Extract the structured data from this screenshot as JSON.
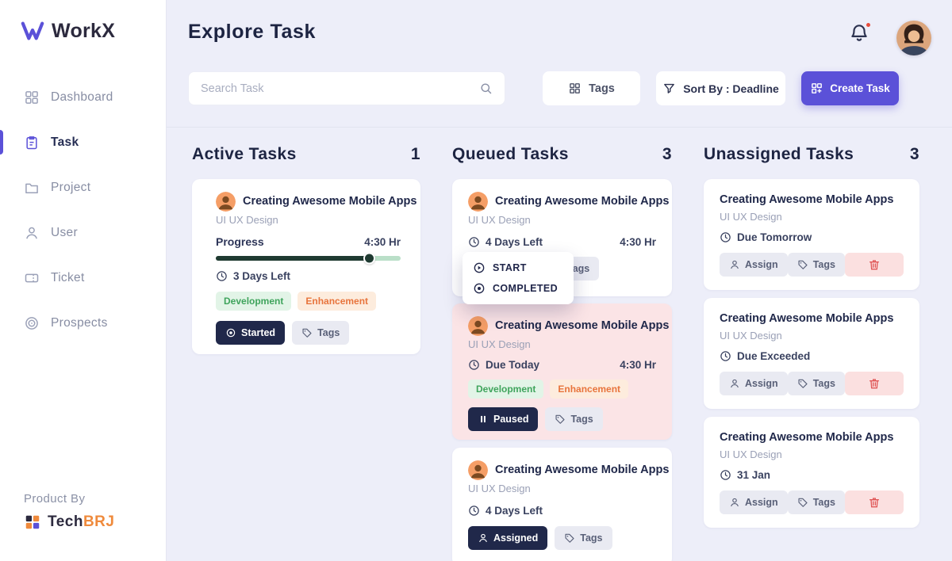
{
  "app": {
    "name": "WorkX",
    "product_by_label": "Product By",
    "brand_tech": "Tech",
    "brand_brj": "BRJ"
  },
  "sidebar": {
    "items": [
      {
        "label": "Dashboard"
      },
      {
        "label": "Task"
      },
      {
        "label": "Project"
      },
      {
        "label": "User"
      },
      {
        "label": "Ticket"
      },
      {
        "label": "Prospects"
      }
    ]
  },
  "header": {
    "title": "Explore Task"
  },
  "toolbar": {
    "search_placeholder": "Search Task",
    "tags_label": "Tags",
    "sort_label": "Sort By : Deadline",
    "create_task_label": "Create Task"
  },
  "board": {
    "active": {
      "title": "Active Tasks",
      "count": "1",
      "cards": [
        {
          "title": "Creating Awesome Mobile Apps",
          "subtitle": "UI UX Design",
          "progress_label": "Progress",
          "hours": "4:30 Hr",
          "progress_pct": 84,
          "due": "3 Days Left",
          "tags": [
            "Development",
            "Enhancement"
          ],
          "status": "Started",
          "tags_button": "Tags"
        }
      ]
    },
    "queued": {
      "title": "Queued Tasks",
      "count": "3",
      "cards": [
        {
          "title": "Creating Awesome Mobile Apps",
          "subtitle": "UI UX Design",
          "due": "4 Days Left",
          "hours": "4:30 Hr",
          "tags_button": "Tags"
        },
        {
          "title": "Creating Awesome Mobile Apps",
          "subtitle": "UI UX Design",
          "due": "Due Today",
          "hours": "4:30 Hr",
          "tags": [
            "Development",
            "Enhancement"
          ],
          "status": "Paused",
          "tags_button": "Tags"
        },
        {
          "title": "Creating Awesome Mobile Apps",
          "subtitle": "UI UX Design",
          "due": "4 Days Left",
          "status": "Assigned",
          "tags_button": "Tags"
        }
      ],
      "status_menu": {
        "items": [
          "START",
          "COMPLETED"
        ]
      }
    },
    "unassigned": {
      "title": "Unassigned Tasks",
      "count": "3",
      "cards": [
        {
          "title": "Creating Awesome Mobile Apps",
          "subtitle": "UI UX Design",
          "due": "Due Tomorrow",
          "assign_label": "Assign",
          "tags_button": "Tags"
        },
        {
          "title": "Creating Awesome Mobile Apps",
          "subtitle": "UI UX Design",
          "due": "Due Exceeded",
          "assign_label": "Assign",
          "tags_button": "Tags"
        },
        {
          "title": "Creating Awesome Mobile Apps",
          "subtitle": "UI UX Design",
          "due": "31 Jan",
          "assign_label": "Assign",
          "tags_button": "Tags"
        }
      ]
    }
  },
  "colors": {
    "accent": "#5b51d8",
    "dark_button": "#20284a",
    "highlight_card_bg": "#fbe4e6",
    "tag_development": "#3fa45c",
    "tag_enhancement": "#e8743c",
    "delete": "#e05656",
    "progress_fill": "#1f3a31",
    "progress_track": "#badfc8"
  }
}
